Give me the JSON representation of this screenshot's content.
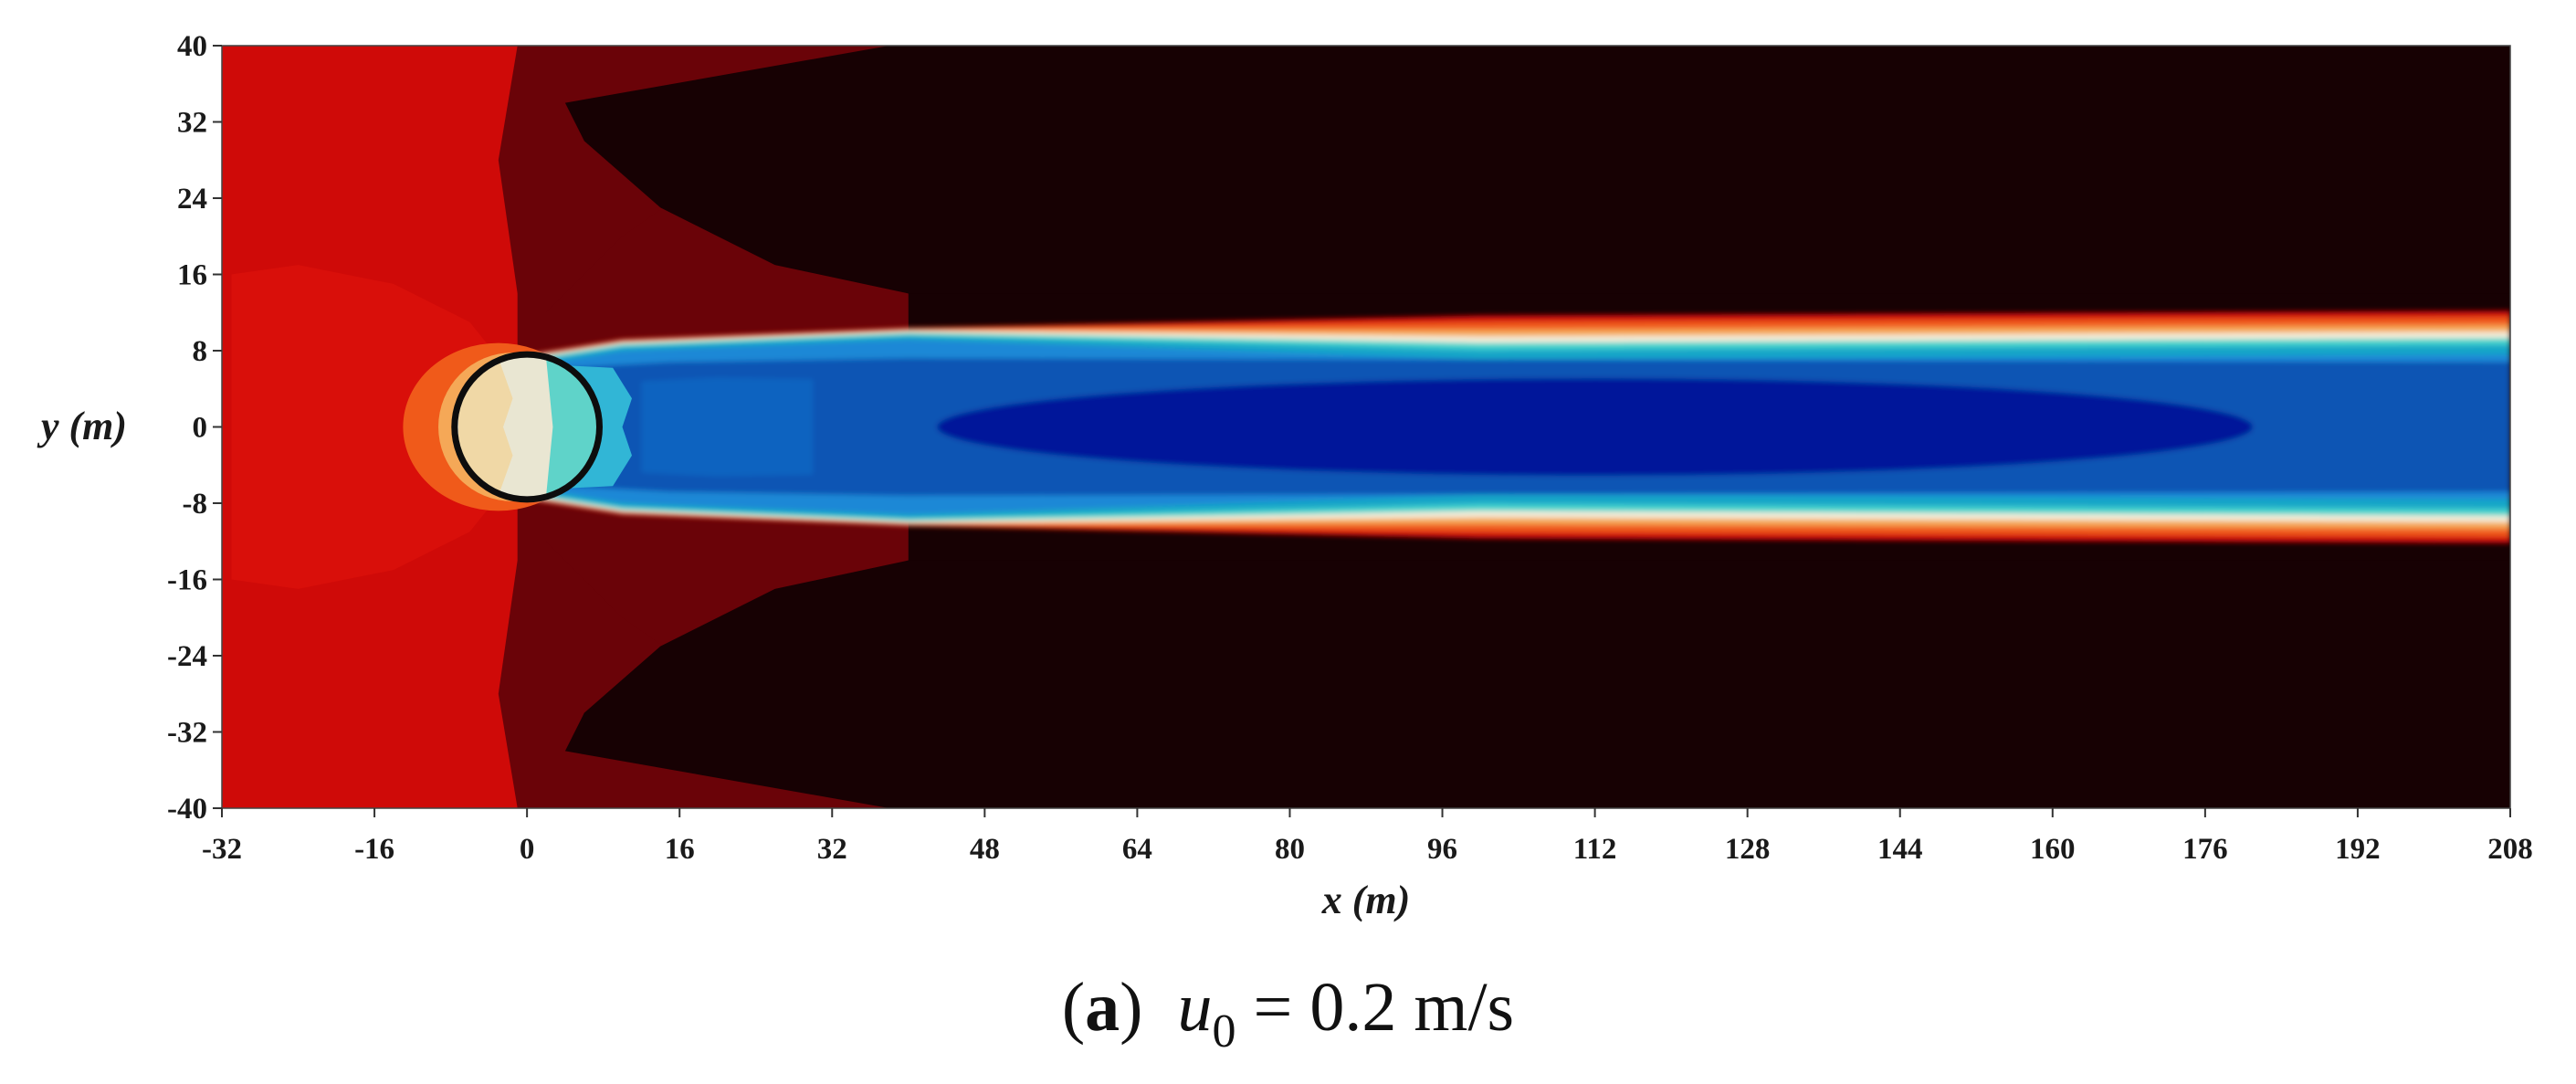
{
  "chart_data": {
    "type": "heatmap",
    "description_kind": "filled-contour velocity field around a cylinder",
    "xlabel": "x (m)",
    "ylabel": "y (m)",
    "xlim": [
      -32,
      208
    ],
    "ylim": [
      -40,
      40
    ],
    "x_ticks": [
      "-32",
      "-16",
      "0",
      "16",
      "32",
      "48",
      "64",
      "80",
      "96",
      "112",
      "128",
      "144",
      "160",
      "176",
      "192",
      "208"
    ],
    "y_ticks": [
      "40",
      "32",
      "24",
      "16",
      "8",
      "0",
      "-8",
      "-16",
      "-24",
      "-32",
      "-40"
    ],
    "x_tick_values": [
      -32,
      -16,
      0,
      16,
      32,
      48,
      64,
      80,
      96,
      112,
      128,
      144,
      160,
      176,
      192,
      208
    ],
    "y_tick_values": [
      40,
      32,
      24,
      16,
      8,
      0,
      -8,
      -16,
      -24,
      -32,
      -40
    ],
    "cylinder": {
      "center": [
        0,
        0
      ],
      "radius": 7.6
    },
    "wake_half_width": [
      8,
      12
    ],
    "colors": {
      "background_far": "#170103",
      "dark_red": "#6a0308",
      "red": "#cf0a08",
      "orange": "#f05a1a",
      "light_orange": "#f5a857",
      "pale": "#f2ecd8",
      "cyan": "#45d4cc",
      "light_blue": "#1e88d6",
      "blue": "#0a55b4",
      "navy": "#03129a"
    }
  },
  "caption": {
    "letter": "a",
    "open": "(",
    "close": ")",
    "variable": "u",
    "subscript": "0",
    "rest": " = 0.2 m/s"
  }
}
